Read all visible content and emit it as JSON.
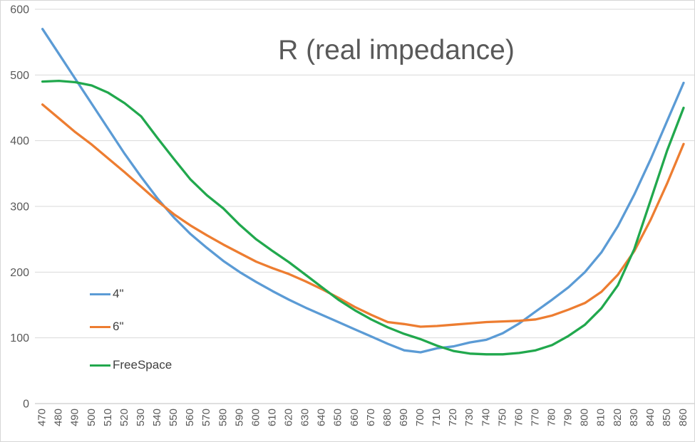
{
  "chart_data": {
    "type": "line",
    "title": "R (real impedance)",
    "xlabel": "",
    "ylabel": "",
    "ylim": [
      0,
      600
    ],
    "y_ticks": [
      0,
      100,
      200,
      300,
      400,
      500,
      600
    ],
    "grid": true,
    "legend_position": "left-middle",
    "categories": [
      470,
      480,
      490,
      500,
      510,
      520,
      530,
      540,
      550,
      560,
      570,
      580,
      590,
      600,
      610,
      620,
      630,
      640,
      650,
      660,
      670,
      680,
      690,
      700,
      710,
      720,
      730,
      740,
      750,
      760,
      770,
      780,
      790,
      800,
      810,
      820,
      830,
      840,
      850,
      860
    ],
    "series": [
      {
        "name": "4\"",
        "color": "#5B9BD5",
        "values": [
          570,
          532,
          494,
          456,
          418,
          380,
          345,
          312,
          283,
          258,
          237,
          217,
          200,
          185,
          171,
          158,
          146,
          135,
          124,
          113,
          102,
          91,
          81,
          78,
          84,
          87,
          93,
          97,
          107,
          122,
          140,
          158,
          177,
          200,
          230,
          270,
          318,
          372,
          430,
          488
        ]
      },
      {
        "name": "6\"",
        "color": "#ED7D31",
        "values": [
          455,
          434,
          413,
          394,
          373,
          352,
          330,
          308,
          288,
          271,
          256,
          242,
          229,
          216,
          206,
          197,
          186,
          174,
          161,
          147,
          135,
          124,
          121,
          117,
          118,
          120,
          122,
          124,
          125,
          126,
          128,
          134,
          143,
          153,
          170,
          196,
          232,
          280,
          335,
          395
        ]
      },
      {
        "name": "FreeSpace",
        "color": "#21A84D",
        "values": [
          490,
          491,
          489,
          484,
          473,
          457,
          437,
          404,
          372,
          341,
          317,
          297,
          272,
          250,
          232,
          215,
          196,
          177,
          158,
          142,
          128,
          116,
          106,
          98,
          88,
          80,
          76,
          75,
          75,
          77,
          81,
          89,
          103,
          120,
          145,
          180,
          235,
          310,
          385,
          450
        ]
      }
    ],
    "colors": {
      "grid": "#D9D9D9",
      "axis": "#BFBFBF",
      "tick_text": "#595959",
      "title_text": "#595959",
      "legend_text": "#404040"
    }
  }
}
